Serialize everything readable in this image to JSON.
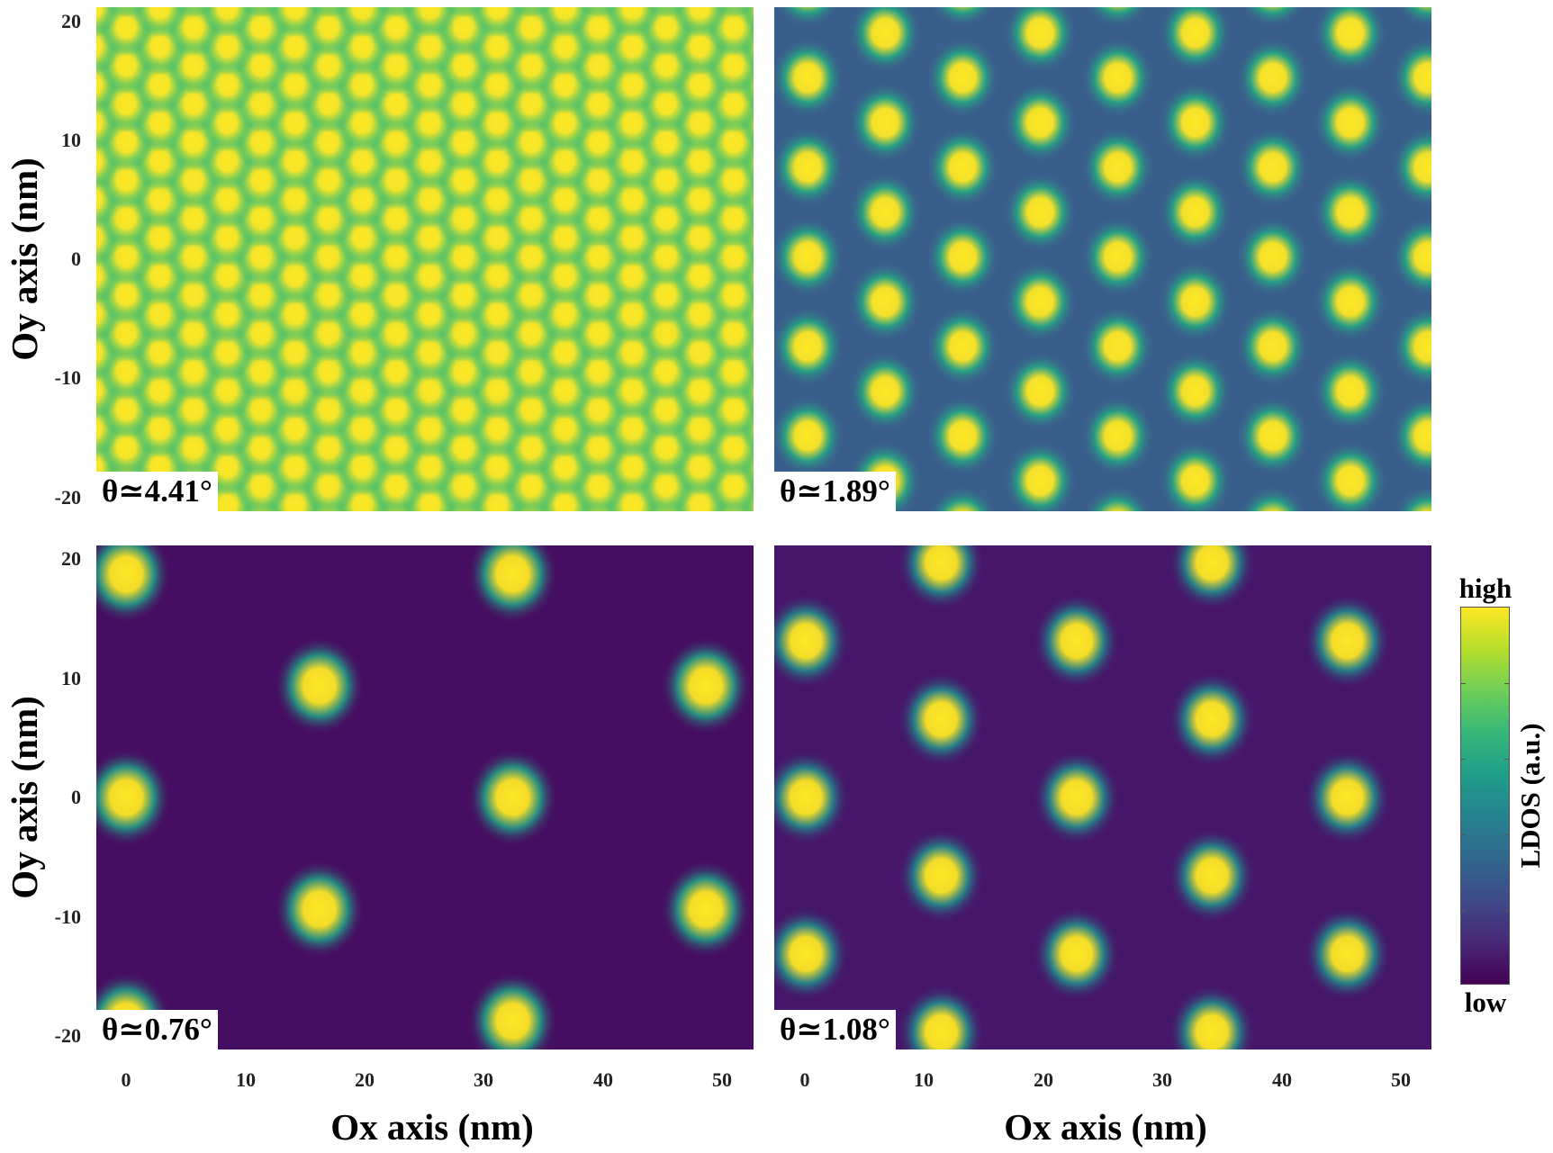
{
  "figure": {
    "ylabel": "Oy axis (nm)",
    "xlabel": "Ox axis (nm)",
    "colorbar": {
      "title": "LDOS (a.u.)",
      "high_label": "high",
      "low_label": "low",
      "colormap": "viridis",
      "colors": [
        "#440154",
        "#482878",
        "#3e4989",
        "#31688e",
        "#26828e",
        "#1f9e89",
        "#35b779",
        "#6ece58",
        "#b5de2b",
        "#fde725"
      ]
    },
    "x_ticks": [
      "0",
      "10",
      "20",
      "30",
      "40",
      "50"
    ],
    "y_ticks": [
      "20",
      "10",
      "0",
      "-10",
      "-20"
    ]
  },
  "chart_data": [
    {
      "type": "heatmap",
      "title": "θ≃4.41°",
      "xlabel": "Ox axis (nm)",
      "ylabel": "Oy axis (nm)",
      "xlim": [
        -2.5,
        52.6
      ],
      "ylim": [
        -21.1,
        21.1
      ],
      "x_ticks": [
        0,
        10,
        20,
        30,
        40,
        50
      ],
      "y_ticks": [
        20,
        10,
        0,
        -10,
        -20
      ],
      "description": "Triangular moiré lattice of LDOS maxima, period ~3.2 nm, high background (green)",
      "lattice": {
        "origin": [
          0.0,
          19.4
        ],
        "a1": [
          0,
          3.2
        ],
        "a2": [
          2.83,
          1.6
        ]
      },
      "background_color": "#3dbb74",
      "spot_color": "#fde725",
      "spot_sigma_nm": 0.75,
      "mid_color": "#8fd14f"
    },
    {
      "type": "heatmap",
      "title": "θ≃1.89°",
      "xlabel": "Ox axis (nm)",
      "ylabel": "Oy axis (nm)",
      "xlim": [
        -2.5,
        52.6
      ],
      "ylim": [
        -21.1,
        21.1
      ],
      "x_ticks": [
        0,
        10,
        20,
        30,
        40,
        50
      ],
      "y_ticks": [
        20,
        10,
        0,
        -10,
        -20
      ],
      "description": "Triangular moiré lattice of LDOS maxima, period ~7.5 nm",
      "lattice": {
        "origin": [
          0.3,
          15.2
        ],
        "a1": [
          0,
          7.5
        ],
        "a2": [
          6.5,
          3.75
        ]
      },
      "background_color": "#3a5e8c",
      "spot_color": "#fde725",
      "spot_sigma_nm": 1.05,
      "mid_color": "#25ab82"
    },
    {
      "type": "heatmap",
      "title": "θ≃0.76°",
      "xlabel": "Ox axis (nm)",
      "ylabel": "Oy axis (nm)",
      "xlim": [
        -2.5,
        52.6
      ],
      "ylim": [
        -21.1,
        21.1
      ],
      "x_ticks": [
        0,
        10,
        20,
        30,
        40,
        50
      ],
      "y_ticks": [
        20,
        10,
        0,
        -10,
        -20
      ],
      "description": "Triangular moiré lattice of LDOS maxima, period ~18.7 nm, low background",
      "lattice": {
        "origin": [
          0.0,
          0.0
        ],
        "a1": [
          0,
          18.7
        ],
        "a2": [
          16.2,
          9.35
        ]
      },
      "background_color": "#460e62",
      "spot_color": "#fde725",
      "spot_sigma_nm": 1.3,
      "mid_color": "#20a386"
    },
    {
      "type": "heatmap",
      "title": "θ≃1.08°",
      "xlabel": "Ox axis (nm)",
      "ylabel": "Oy axis (nm)",
      "xlim": [
        -2.5,
        52.6
      ],
      "ylim": [
        -21.1,
        21.1
      ],
      "x_ticks": [
        0,
        10,
        20,
        30,
        40,
        50
      ],
      "y_ticks": [
        20,
        10,
        0,
        -10,
        -20
      ],
      "description": "Triangular moiré lattice of LDOS maxima, period ~13.1 nm",
      "lattice": {
        "origin": [
          0.15,
          0.0
        ],
        "a1": [
          0,
          13.1
        ],
        "a2": [
          11.35,
          6.55
        ]
      },
      "background_color": "#46166b",
      "spot_color": "#fde725",
      "spot_sigma_nm": 1.25,
      "mid_color": "#21918c"
    }
  ]
}
